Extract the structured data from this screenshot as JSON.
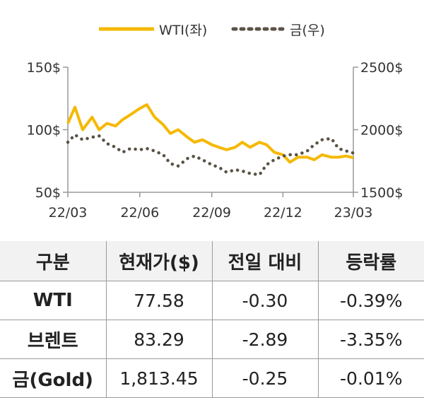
{
  "chart_data": {
    "type": "line",
    "legend": [
      {
        "name": "WTI(좌)",
        "color": "#F5B800",
        "style": "solid"
      },
      {
        "name": "금(우)",
        "color": "#5a5246",
        "style": "dotted"
      }
    ],
    "legend_position": "top-center",
    "x_ticks": [
      "22/03",
      "22/06",
      "22/09",
      "22/12",
      "23/03"
    ],
    "y_left": {
      "ticks": [
        "150$",
        "100$",
        "50$"
      ],
      "range": [
        50,
        150
      ]
    },
    "y_right": {
      "ticks": [
        "2500$",
        "2000$",
        "1500$"
      ],
      "range": [
        1500,
        2500
      ]
    },
    "grid": false,
    "series": [
      {
        "name": "WTI(좌)",
        "axis": "left",
        "color": "#F5B800",
        "x": [
          "22/03/01",
          "22/03/10",
          "22/03/20",
          "22/04/01",
          "22/04/10",
          "22/04/20",
          "22/05/01",
          "22/05/10",
          "22/05/20",
          "22/06/01",
          "22/06/10",
          "22/06/20",
          "22/07/01",
          "22/07/10",
          "22/07/20",
          "22/08/01",
          "22/08/10",
          "22/08/20",
          "22/09/01",
          "22/09/10",
          "22/09/20",
          "22/10/01",
          "22/10/10",
          "22/10/20",
          "22/11/01",
          "22/11/10",
          "22/11/20",
          "22/12/01",
          "22/12/10",
          "22/12/20",
          "23/01/01",
          "23/01/10",
          "23/01/20",
          "23/02/01",
          "23/02/10",
          "23/02/20",
          "23/03/01"
        ],
        "values": [
          105,
          118,
          100,
          110,
          100,
          105,
          103,
          108,
          112,
          117,
          120,
          110,
          104,
          97,
          100,
          94,
          90,
          92,
          88,
          86,
          84,
          86,
          90,
          86,
          90,
          88,
          82,
          80,
          74,
          78,
          78,
          76,
          80,
          78,
          78,
          79,
          77.58
        ]
      },
      {
        "name": "금(우)",
        "axis": "right",
        "color": "#5a5246",
        "x": [
          "22/03/01",
          "22/03/10",
          "22/03/20",
          "22/04/01",
          "22/04/10",
          "22/04/20",
          "22/05/01",
          "22/05/10",
          "22/05/20",
          "22/06/01",
          "22/06/10",
          "22/06/20",
          "22/07/01",
          "22/07/10",
          "22/07/20",
          "22/08/01",
          "22/08/10",
          "22/08/20",
          "22/09/01",
          "22/09/10",
          "22/09/20",
          "22/10/01",
          "22/10/10",
          "22/10/20",
          "22/11/01",
          "22/11/10",
          "22/11/20",
          "22/12/01",
          "22/12/10",
          "22/12/20",
          "23/01/01",
          "23/01/10",
          "23/01/20",
          "23/02/01",
          "23/02/10",
          "23/02/20",
          "23/03/01"
        ],
        "values": [
          1900,
          1960,
          1920,
          1940,
          1950,
          1890,
          1860,
          1820,
          1850,
          1840,
          1850,
          1830,
          1800,
          1730,
          1710,
          1770,
          1790,
          1760,
          1720,
          1700,
          1660,
          1680,
          1670,
          1650,
          1640,
          1720,
          1760,
          1790,
          1800,
          1800,
          1830,
          1880,
          1920,
          1930,
          1850,
          1830,
          1813.45
        ]
      }
    ]
  },
  "table": {
    "headers": [
      "구분",
      "현재가($)",
      "전일 대비",
      "등락률"
    ],
    "rows": [
      [
        "WTI",
        "77.58",
        "-0.30",
        "-0.39%"
      ],
      [
        "브렌트",
        "83.29",
        "-2.89",
        "-3.35%"
      ],
      [
        "금(Gold)",
        "1,813.45",
        "-0.25",
        "-0.01%"
      ]
    ]
  }
}
